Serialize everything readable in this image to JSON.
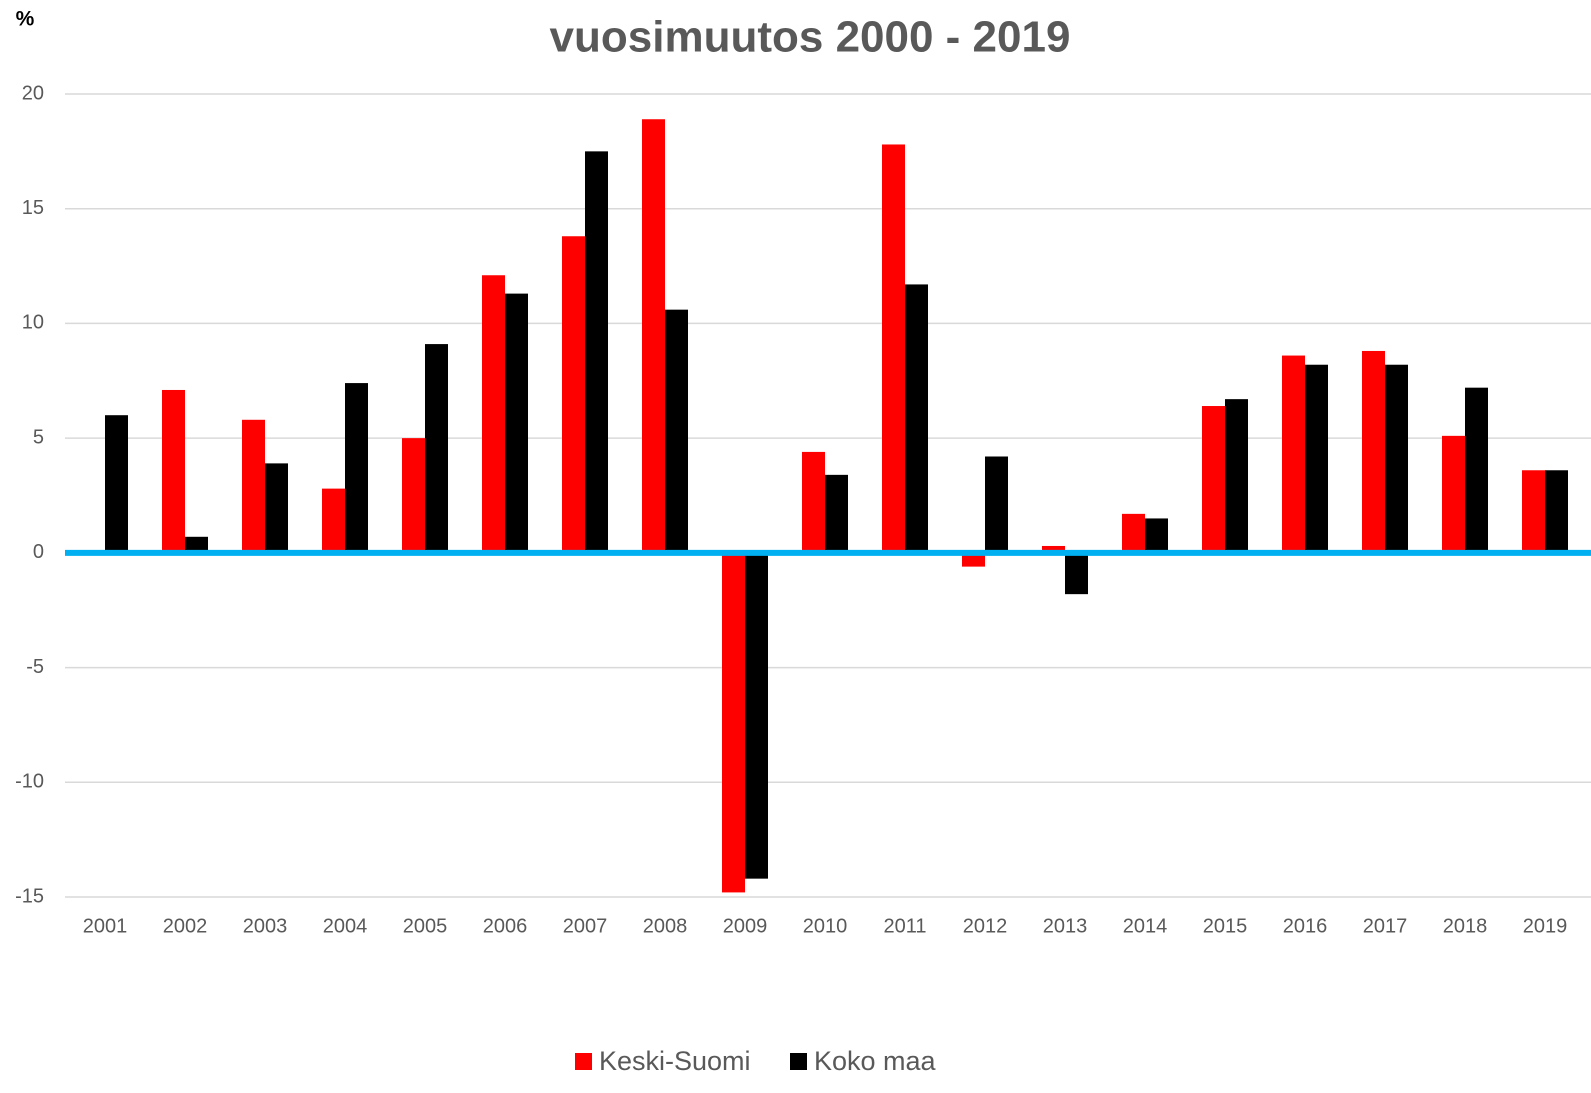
{
  "chart_data": {
    "type": "bar",
    "title": "vuosimuutos 2000 - 2019",
    "y_label": "%",
    "categories": [
      "2001",
      "2002",
      "2003",
      "2004",
      "2005",
      "2006",
      "2007",
      "2008",
      "2009",
      "2010",
      "2011",
      "2012",
      "2013",
      "2014",
      "2015",
      "2016",
      "2017",
      "2018",
      "2019"
    ],
    "series": [
      {
        "name": "Keski-Suomi",
        "color": "#ff0000",
        "values": [
          0,
          7.1,
          5.8,
          2.8,
          5.0,
          12.1,
          13.8,
          18.9,
          -14.8,
          4.4,
          17.8,
          -0.6,
          0.3,
          1.7,
          6.4,
          8.6,
          8.8,
          5.1,
          3.6
        ]
      },
      {
        "name": "Koko maa",
        "color": "#000000",
        "values": [
          6.0,
          0.7,
          3.9,
          7.4,
          9.1,
          11.3,
          17.5,
          10.6,
          -14.2,
          3.4,
          11.7,
          4.2,
          -1.8,
          1.5,
          6.7,
          8.2,
          8.2,
          7.2,
          3.6
        ]
      }
    ],
    "ylim": [
      -15,
      20
    ],
    "yticks": [
      -15,
      -10,
      -5,
      0,
      5,
      10,
      15,
      20
    ],
    "grid": true,
    "zero_line_color": "#00b0f0",
    "legend": "bottom"
  }
}
